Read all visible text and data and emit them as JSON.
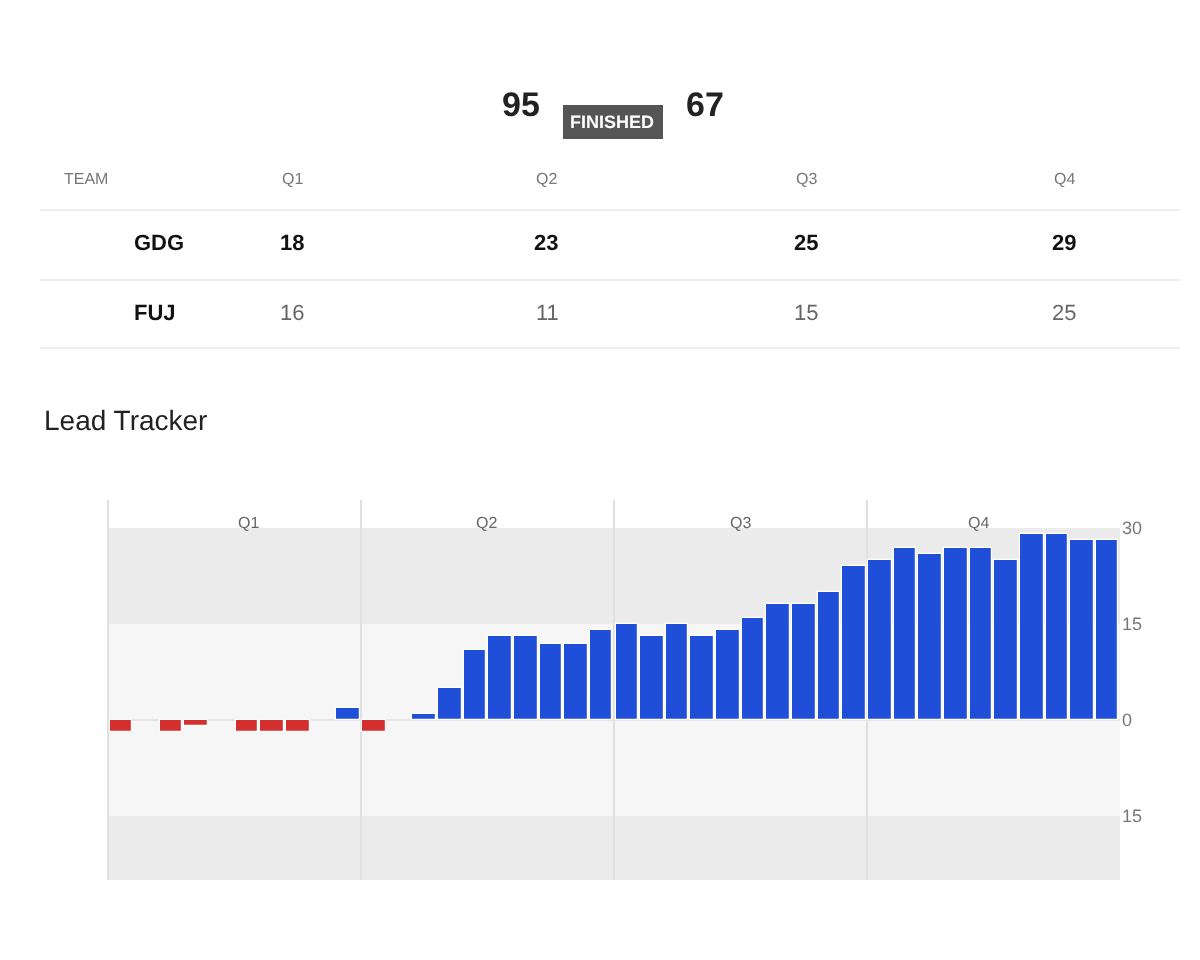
{
  "chart_data": {
    "type": "bar",
    "title": "Lead Tracker",
    "categories": [
      null,
      null,
      null,
      null,
      null,
      null,
      null,
      null,
      null,
      null,
      null,
      null,
      null,
      null,
      null,
      null,
      null,
      null,
      null,
      null,
      null,
      null,
      null,
      null,
      null,
      null,
      null,
      null,
      null,
      null,
      null,
      null,
      null,
      null,
      null,
      null,
      null,
      null,
      null,
      null
    ],
    "values": [
      -2,
      null,
      -2,
      -1,
      null,
      -2,
      -2,
      -2,
      null,
      2,
      -2,
      null,
      1,
      5,
      11,
      13,
      13,
      12,
      12,
      14,
      15,
      13,
      15,
      13,
      14,
      16,
      18,
      18,
      20,
      24,
      25,
      27,
      26,
      27,
      27,
      25,
      29,
      29,
      28,
      28
    ],
    "colors": [
      "#d32f2f",
      "#d32f2f",
      "#d32f2f",
      "#d32f2f",
      "#d32f2f",
      "#d32f2f",
      "#d32f2f",
      "#d32f2f",
      "#d32f2f",
      "#1f4fd8",
      "#d32f2f",
      "#1f4fd8",
      "#1f4fd8",
      "#1f4fd8",
      "#1f4fd8",
      "#1f4fd8",
      "#1f4fd8",
      "#1f4fd8",
      "#1f4fd8",
      "#1f4fd8",
      "#1f4fd8",
      "#1f4fd8",
      "#1f4fd8",
      "#1f4fd8",
      "#1f4fd8",
      "#1f4fd8",
      "#1f4fd8",
      "#1f4fd8",
      "#1f4fd8",
      "#1f4fd8",
      "#1f4fd8",
      "#1f4fd8",
      "#1f4fd8",
      "#1f4fd8",
      "#1f4fd8",
      "#1f4fd8",
      "#1f4fd8",
      "#1f4fd8",
      "#1f4fd8",
      "#1f4fd8"
    ],
    "ylim": [
      -25,
      30
    ],
    "yticks": [
      {
        "value": -15,
        "label": "15"
      },
      0,
      15,
      30
    ],
    "grid": false,
    "ref_lines": [
      {
        "axis": "y",
        "value": 0,
        "label": null,
        "color": "#e6e6e6"
      }
    ],
    "bands": [
      {
        "axis": "y",
        "from": 15,
        "to": 30,
        "label": null,
        "color": "#ebebeb"
      },
      {
        "axis": "y",
        "from": -15,
        "to": 15,
        "label": null,
        "color": "#f6f6f6"
      },
      {
        "axis": "y",
        "from": -25,
        "to": -15,
        "label": null,
        "color": "#ebebeb"
      }
    ],
    "annotations": [
      "95",
      "FINISHED",
      "67",
      "TEAM",
      "Q1",
      "Q2",
      "Q3",
      "Q4",
      "GDG",
      "18",
      "23",
      "25",
      "29",
      "FUJ",
      "16",
      "11",
      "15",
      "25",
      "Q1",
      "Q2",
      "Q3",
      "Q4"
    ]
  }
}
